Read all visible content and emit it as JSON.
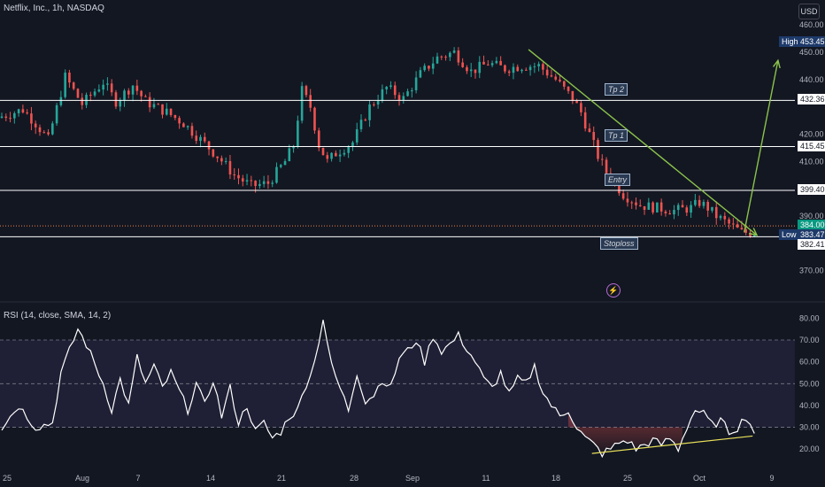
{
  "header": {
    "title": "Netflix, Inc., 1h, NASDAQ",
    "currency": "USD",
    "rsi_title": "RSI (14, close, SMA, 14, 2)"
  },
  "icons": {
    "alert": "lightning-icon"
  },
  "colors": {
    "background": "#131722",
    "up": "#26a69a",
    "down": "#ef5350",
    "arrow": "#8bc34a",
    "rsi_line": "#ffffff",
    "rsi_band": "#7e57c2",
    "trendline": "#e8e05a"
  },
  "chart_data": [
    {
      "type": "candlestick",
      "title": "Netflix, Inc., 1h, NASDAQ",
      "ylim": [
        366,
        462
      ],
      "y_ticks": [
        460,
        450,
        440,
        420,
        410,
        390,
        370
      ],
      "x_ticks": [
        "25",
        "Aug",
        "7",
        "14",
        "21",
        "28",
        "Sep",
        "11",
        "18",
        "25",
        "Oct",
        "9"
      ],
      "price_anchors": [
        [
          0,
          426
        ],
        [
          6,
          429
        ],
        [
          9,
          424
        ],
        [
          12,
          418
        ],
        [
          16,
          441
        ],
        [
          20,
          431
        ],
        [
          25,
          439
        ],
        [
          28,
          432
        ],
        [
          32,
          438
        ],
        [
          35,
          432
        ],
        [
          40,
          428
        ],
        [
          44,
          424
        ],
        [
          48,
          418
        ],
        [
          52,
          412
        ],
        [
          56,
          405
        ],
        [
          60,
          401
        ],
        [
          64,
          402
        ],
        [
          68,
          410
        ],
        [
          70,
          416
        ],
        [
          72,
          436
        ],
        [
          74,
          430
        ],
        [
          76,
          416
        ],
        [
          78,
          410
        ],
        [
          80,
          413
        ],
        [
          84,
          417
        ],
        [
          88,
          430
        ],
        [
          92,
          437
        ],
        [
          96,
          433
        ],
        [
          100,
          442
        ],
        [
          104,
          448
        ],
        [
          108,
          450
        ],
        [
          112,
          443
        ],
        [
          116,
          446
        ],
        [
          120,
          444
        ],
        [
          124,
          445
        ],
        [
          128,
          445
        ],
        [
          132,
          440
        ],
        [
          136,
          433
        ],
        [
          138,
          428
        ],
        [
          140,
          420
        ],
        [
          142,
          412
        ],
        [
          144,
          406
        ],
        [
          148,
          398
        ],
        [
          152,
          394
        ],
        [
          156,
          393
        ],
        [
          160,
          392
        ],
        [
          164,
          393
        ],
        [
          166,
          395
        ],
        [
          168,
          393
        ],
        [
          170,
          390
        ],
        [
          174,
          386
        ],
        [
          176,
          384
        ]
      ],
      "levels": [
        {
          "name": "Tp 2",
          "value": 432.36,
          "label": "432.36"
        },
        {
          "name": "Tp 1",
          "value": 415.45,
          "label": "415.45"
        },
        {
          "name": "Entry",
          "value": 399.4,
          "label": "399.40"
        },
        {
          "name": "Stoploss",
          "value": 382.41,
          "label": "382.41"
        }
      ],
      "high": {
        "label": "High",
        "value": "453.45"
      },
      "low": {
        "label": "Low",
        "value": "383.47"
      },
      "last_price": "384.00",
      "current_price_line": 386.4,
      "arrows": [
        {
          "from": [
            125,
            451
          ],
          "to": [
            179,
            383
          ]
        },
        {
          "from": [
            176,
            384
          ],
          "to": [
            184,
            447
          ]
        }
      ]
    },
    {
      "type": "line",
      "title": "RSI (14, close, SMA, 14, 2)",
      "ylim": [
        14,
        83
      ],
      "y_ticks": [
        80.0,
        70.0,
        60.0,
        50.0,
        40.0,
        30.0,
        20.0
      ],
      "bands": [
        30,
        50,
        70
      ],
      "rsi_anchors": [
        [
          0,
          30
        ],
        [
          4,
          40
        ],
        [
          8,
          30
        ],
        [
          12,
          32
        ],
        [
          14,
          55
        ],
        [
          18,
          75
        ],
        [
          20,
          68
        ],
        [
          24,
          50
        ],
        [
          26,
          38
        ],
        [
          28,
          52
        ],
        [
          30,
          40
        ],
        [
          32,
          62
        ],
        [
          34,
          50
        ],
        [
          36,
          58
        ],
        [
          38,
          48
        ],
        [
          40,
          55
        ],
        [
          44,
          38
        ],
        [
          46,
          50
        ],
        [
          48,
          40
        ],
        [
          50,
          52
        ],
        [
          52,
          35
        ],
        [
          54,
          48
        ],
        [
          56,
          32
        ],
        [
          58,
          40
        ],
        [
          60,
          28
        ],
        [
          62,
          32
        ],
        [
          64,
          25
        ],
        [
          66,
          28
        ],
        [
          68,
          35
        ],
        [
          70,
          38
        ],
        [
          72,
          50
        ],
        [
          74,
          60
        ],
        [
          76,
          80
        ],
        [
          78,
          58
        ],
        [
          80,
          48
        ],
        [
          82,
          38
        ],
        [
          84,
          55
        ],
        [
          86,
          42
        ],
        [
          88,
          45
        ],
        [
          90,
          52
        ],
        [
          92,
          48
        ],
        [
          94,
          62
        ],
        [
          96,
          65
        ],
        [
          98,
          70
        ],
        [
          100,
          60
        ],
        [
          102,
          72
        ],
        [
          104,
          65
        ],
        [
          106,
          68
        ],
        [
          108,
          72
        ],
        [
          110,
          66
        ],
        [
          112,
          60
        ],
        [
          114,
          52
        ],
        [
          116,
          48
        ],
        [
          118,
          55
        ],
        [
          120,
          45
        ],
        [
          122,
          52
        ],
        [
          124,
          50
        ],
        [
          126,
          58
        ],
        [
          128,
          46
        ],
        [
          130,
          40
        ],
        [
          132,
          35
        ],
        [
          134,
          38
        ],
        [
          136,
          30
        ],
        [
          138,
          25
        ],
        [
          140,
          22
        ],
        [
          142,
          18
        ],
        [
          144,
          20
        ],
        [
          146,
          23
        ],
        [
          148,
          24
        ],
        [
          150,
          20
        ],
        [
          152,
          22
        ],
        [
          154,
          24
        ],
        [
          156,
          22
        ],
        [
          158,
          25
        ],
        [
          160,
          20
        ],
        [
          162,
          30
        ],
        [
          164,
          38
        ],
        [
          166,
          36
        ],
        [
          168,
          31
        ],
        [
          170,
          33
        ],
        [
          172,
          28
        ],
        [
          174,
          30
        ],
        [
          176,
          35
        ],
        [
          178,
          28
        ]
      ],
      "trendline": {
        "from": [
          140,
          18
        ],
        "to": [
          178,
          26
        ]
      }
    }
  ]
}
